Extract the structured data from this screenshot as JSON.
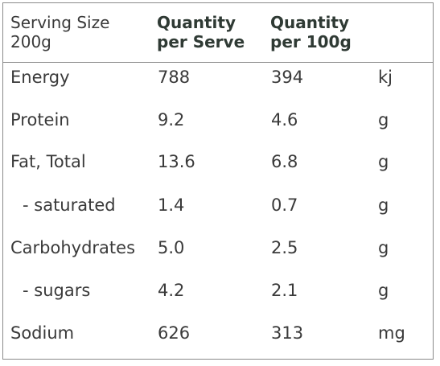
{
  "header": {
    "col1_line1": "Serving Size",
    "col1_line2": "200g",
    "col2_line1": "Quantity",
    "col2_line2": "per Serve",
    "col3_line1": "Quantity",
    "col3_line2": "per 100g"
  },
  "rows": [
    {
      "name": "Energy",
      "per_serve": "788",
      "per_100g": "394",
      "unit": "kj"
    },
    {
      "name": "Protein",
      "per_serve": "9.2",
      "per_100g": "4.6",
      "unit": "g"
    },
    {
      "name": "Fat, Total",
      "per_serve": "13.6",
      "per_100g": "6.8",
      "unit": "g"
    },
    {
      "name": "- saturated",
      "per_serve": "1.4",
      "per_100g": "0.7",
      "unit": "g"
    },
    {
      "name": "Carbohydrates",
      "per_serve": "5.0",
      "per_100g": "2.5",
      "unit": "g"
    },
    {
      "name": "- sugars",
      "per_serve": "4.2",
      "per_100g": "2.1",
      "unit": "g"
    },
    {
      "name": "Sodium",
      "per_serve": "626",
      "per_100g": "313",
      "unit": "mg"
    }
  ]
}
